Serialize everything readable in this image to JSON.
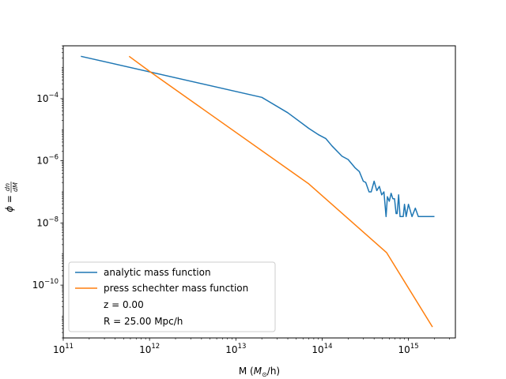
{
  "chart_data": {
    "type": "line",
    "xscale": "log",
    "yscale": "log",
    "xlim": [
      100000000000.0,
      3500000000000000.0
    ],
    "ylim": [
      2e-12,
      0.005
    ],
    "xlabel": "M (",
    "xlabel_math": "M",
    "xlabel_sub": "⊙",
    "xlabel_tail": "/h)",
    "ylabel_lhs": "ϕ =",
    "ylabel_num": "dn",
    "ylabel_den": "dM",
    "x_ticks": [
      {
        "value": 100000000000.0,
        "base": "10",
        "exp": "11"
      },
      {
        "value": 1000000000000.0,
        "base": "10",
        "exp": "12"
      },
      {
        "value": 10000000000000.0,
        "base": "10",
        "exp": "13"
      },
      {
        "value": 100000000000000.0,
        "base": "10",
        "exp": "14"
      },
      {
        "value": 1000000000000000.0,
        "base": "10",
        "exp": "15"
      }
    ],
    "y_ticks": [
      {
        "value": 1e-10,
        "base": "10",
        "exp": "−10"
      },
      {
        "value": 1e-08,
        "base": "10",
        "exp": "−8"
      },
      {
        "value": 1e-06,
        "base": "10",
        "exp": "−6"
      },
      {
        "value": 0.0001,
        "base": "10",
        "exp": "−4"
      }
    ],
    "legend_position": "lower-left",
    "annotations": [
      "z = 0.00",
      "R = 25.00 Mpc/h"
    ],
    "series": [
      {
        "name": "analytic mass function",
        "color": "#1f77b4",
        "x": [
          160000000000.0,
          20000000000000.0,
          40000000000000.0,
          70000000000000.0,
          90000000000000.0,
          110000000000000.0,
          130000000000000.0,
          170000000000000.0,
          200000000000000.0,
          240000000000000.0,
          270000000000000.0,
          300000000000000.0,
          320000000000000.0,
          350000000000000.0,
          370000000000000.0,
          400000000000000.0,
          430000000000000.0,
          460000000000000.0,
          490000000000000.0,
          520000000000000.0,
          550000000000000.0,
          570000000000000.0,
          600000000000000.0,
          630000000000000.0,
          660000000000000.0,
          690000000000000.0,
          720000000000000.0,
          740000000000000.0,
          770000000000000.0,
          800000000000000.0,
          830000000000000.0,
          870000000000000.0,
          900000000000000.0,
          940000000000000.0,
          1000000000000000.0,
          1100000000000000.0,
          1200000000000000.0,
          1300000000000000.0,
          1500000000000000.0,
          2000000000000000.0
        ],
        "y": [
          0.0023,
          0.00011,
          3.5e-05,
          1.1e-05,
          7e-06,
          5.2e-06,
          3e-06,
          1.4e-06,
          1.1e-06,
          6e-07,
          4.5e-07,
          2.2e-07,
          2e-07,
          1e-07,
          1e-07,
          2.2e-07,
          1.1e-07,
          1.5e-07,
          8e-08,
          1e-07,
          1.6e-08,
          7e-08,
          5e-08,
          9e-08,
          6e-08,
          6e-08,
          2e-08,
          2e-08,
          8e-08,
          1.6e-08,
          1.6e-08,
          1.6e-08,
          4e-08,
          1.6e-08,
          4e-08,
          1.6e-08,
          3e-08,
          1.6e-08,
          1.6e-08,
          1.6e-08
        ]
      },
      {
        "name": "press schechter mass function",
        "color": "#ff7f0e",
        "x": [
          580000000000.0,
          1000000000000.0,
          70000000000000.0,
          560000000000000.0,
          1900000000000000.0
        ],
        "y": [
          0.0023,
          0.00075,
          1.8e-07,
          1.1e-09,
          4.5e-12
        ]
      }
    ]
  }
}
